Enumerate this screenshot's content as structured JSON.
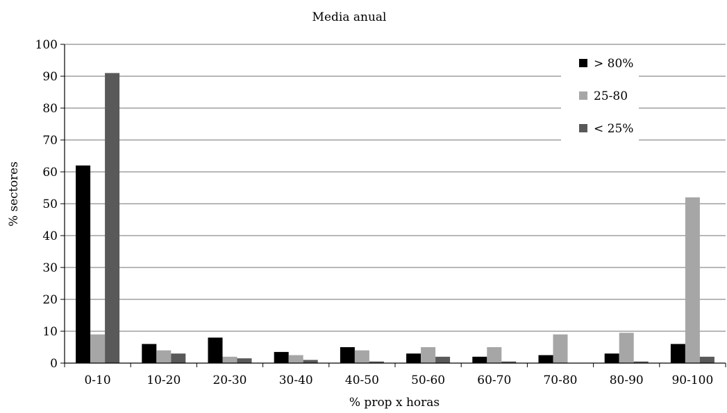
{
  "chart_data": {
    "type": "bar",
    "title": "Media anual",
    "xlabel": "% prop x horas",
    "ylabel": "% sectores",
    "ylim": [
      0,
      100
    ],
    "yticks": [
      0,
      10,
      20,
      30,
      40,
      50,
      60,
      70,
      80,
      90,
      100
    ],
    "grid": true,
    "legend_position": "top-right",
    "categories": [
      "0-10",
      "10-20",
      "20-30",
      "30-40",
      "40-50",
      "50-60",
      "60-70",
      "70-80",
      "80-90",
      "90-100"
    ],
    "series": [
      {
        "name": "> 80%",
        "color": "#000000",
        "values": [
          62,
          6,
          8,
          3.5,
          5,
          3,
          2,
          2.5,
          3,
          6
        ]
      },
      {
        "name": "25-80",
        "color": "#a6a6a6",
        "values": [
          9,
          4,
          2,
          2.5,
          4,
          5,
          5,
          9,
          9.5,
          52
        ]
      },
      {
        "name": "< 25%",
        "color": "#595959",
        "values": [
          91,
          3,
          1.5,
          1,
          0.5,
          2,
          0.5,
          0,
          0.5,
          2
        ]
      }
    ]
  }
}
